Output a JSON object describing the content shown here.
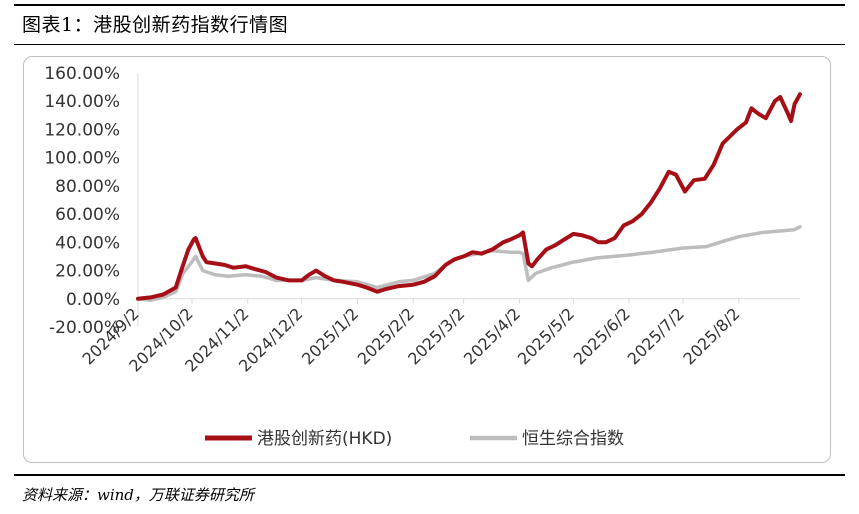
{
  "figure": {
    "title": "图表1：港股创新药指数行情图",
    "source": "资料来源：wind，万联证券研究所"
  },
  "chart_data": {
    "type": "line",
    "title": "",
    "xlabel": "",
    "ylabel": "",
    "ylim": [
      -20,
      160
    ],
    "y_tick_labels": [
      "160.00%",
      "140.00%",
      "120.00%",
      "100.00%",
      "80.00%",
      "60.00%",
      "40.00%",
      "20.00%",
      "0.00%",
      "-20.00%"
    ],
    "x_tick_labels": [
      "2024/9/2",
      "2024/10/2",
      "2024/11/2",
      "2024/12/2",
      "2025/1/2",
      "2025/2/2",
      "2025/3/2",
      "2025/4/2",
      "2025/5/2",
      "2025/6/2",
      "2025/7/2",
      "2025/8/2"
    ],
    "xlim": [
      "2024-09-02",
      "2025-09-05"
    ],
    "grid": false,
    "legend_position": "bottom",
    "series": [
      {
        "name": "港股创新药(HKD)",
        "color": "#a50f15",
        "points": [
          [
            "2024-09-02",
            0
          ],
          [
            "2024-09-09",
            1
          ],
          [
            "2024-09-16",
            3
          ],
          [
            "2024-09-23",
            8
          ],
          [
            "2024-09-26",
            20
          ],
          [
            "2024-09-30",
            35
          ],
          [
            "2024-10-03",
            42
          ],
          [
            "2024-10-04",
            43
          ],
          [
            "2024-10-08",
            30
          ],
          [
            "2024-10-10",
            26
          ],
          [
            "2024-10-15",
            25
          ],
          [
            "2024-10-20",
            24
          ],
          [
            "2024-10-25",
            22
          ],
          [
            "2024-11-01",
            23
          ],
          [
            "2024-11-06",
            21
          ],
          [
            "2024-11-12",
            19
          ],
          [
            "2024-11-18",
            15
          ],
          [
            "2024-11-25",
            13
          ],
          [
            "2024-12-02",
            13
          ],
          [
            "2024-12-06",
            17
          ],
          [
            "2024-12-10",
            20
          ],
          [
            "2024-12-15",
            16
          ],
          [
            "2024-12-20",
            13
          ],
          [
            "2024-12-25",
            12
          ],
          [
            "2025-01-02",
            10
          ],
          [
            "2025-01-07",
            8
          ],
          [
            "2025-01-13",
            5
          ],
          [
            "2025-01-18",
            7
          ],
          [
            "2025-01-25",
            9
          ],
          [
            "2025-02-02",
            10
          ],
          [
            "2025-02-08",
            12
          ],
          [
            "2025-02-14",
            16
          ],
          [
            "2025-02-20",
            24
          ],
          [
            "2025-02-25",
            28
          ],
          [
            "2025-03-02",
            30
          ],
          [
            "2025-03-07",
            33
          ],
          [
            "2025-03-12",
            32
          ],
          [
            "2025-03-18",
            35
          ],
          [
            "2025-03-24",
            40
          ],
          [
            "2025-03-28",
            42
          ],
          [
            "2025-04-02",
            45
          ],
          [
            "2025-04-04",
            47
          ],
          [
            "2025-04-07",
            25
          ],
          [
            "2025-04-09",
            23
          ],
          [
            "2025-04-12",
            28
          ],
          [
            "2025-04-17",
            35
          ],
          [
            "2025-04-22",
            38
          ],
          [
            "2025-04-27",
            42
          ],
          [
            "2025-05-02",
            46
          ],
          [
            "2025-05-07",
            45
          ],
          [
            "2025-05-12",
            43
          ],
          [
            "2025-05-16",
            40
          ],
          [
            "2025-05-20",
            40
          ],
          [
            "2025-05-25",
            43
          ],
          [
            "2025-05-30",
            52
          ],
          [
            "2025-06-04",
            55
          ],
          [
            "2025-06-09",
            60
          ],
          [
            "2025-06-14",
            68
          ],
          [
            "2025-06-19",
            78
          ],
          [
            "2025-06-24",
            90
          ],
          [
            "2025-06-28",
            88
          ],
          [
            "2025-07-03",
            76
          ],
          [
            "2025-07-08",
            84
          ],
          [
            "2025-07-14",
            85
          ],
          [
            "2025-07-19",
            95
          ],
          [
            "2025-07-24",
            110
          ],
          [
            "2025-07-28",
            115
          ],
          [
            "2025-08-01",
            120
          ],
          [
            "2025-08-06",
            125
          ],
          [
            "2025-08-09",
            135
          ],
          [
            "2025-08-13",
            131
          ],
          [
            "2025-08-17",
            128
          ],
          [
            "2025-08-22",
            140
          ],
          [
            "2025-08-25",
            143
          ],
          [
            "2025-08-29",
            132
          ],
          [
            "2025-08-31",
            126
          ],
          [
            "2025-09-02",
            138
          ],
          [
            "2025-09-05",
            145
          ]
        ]
      },
      {
        "name": "恒生综合指数",
        "color": "#bdbdbd",
        "points": [
          [
            "2024-09-02",
            0
          ],
          [
            "2024-09-09",
            -1
          ],
          [
            "2024-09-16",
            1
          ],
          [
            "2024-09-23",
            5
          ],
          [
            "2024-09-27",
            18
          ],
          [
            "2024-10-03",
            28
          ],
          [
            "2024-10-04",
            30
          ],
          [
            "2024-10-08",
            20
          ],
          [
            "2024-10-15",
            17
          ],
          [
            "2024-10-22",
            16
          ],
          [
            "2024-11-01",
            17
          ],
          [
            "2024-11-10",
            16
          ],
          [
            "2024-11-18",
            13
          ],
          [
            "2024-12-02",
            13
          ],
          [
            "2024-12-10",
            15
          ],
          [
            "2024-12-20",
            13
          ],
          [
            "2025-01-02",
            12
          ],
          [
            "2025-01-13",
            8
          ],
          [
            "2025-01-25",
            12
          ],
          [
            "2025-02-02",
            13
          ],
          [
            "2025-02-14",
            18
          ],
          [
            "2025-02-22",
            26
          ],
          [
            "2025-03-02",
            30
          ],
          [
            "2025-03-10",
            32
          ],
          [
            "2025-03-18",
            34
          ],
          [
            "2025-03-28",
            33
          ],
          [
            "2025-04-02",
            33
          ],
          [
            "2025-04-04",
            32
          ],
          [
            "2025-04-07",
            13
          ],
          [
            "2025-04-11",
            18
          ],
          [
            "2025-04-20",
            22
          ],
          [
            "2025-05-02",
            26
          ],
          [
            "2025-05-15",
            29
          ],
          [
            "2025-06-02",
            31
          ],
          [
            "2025-06-15",
            33
          ],
          [
            "2025-07-02",
            36
          ],
          [
            "2025-07-15",
            37
          ],
          [
            "2025-07-25",
            41
          ],
          [
            "2025-08-02",
            44
          ],
          [
            "2025-08-15",
            47
          ],
          [
            "2025-08-25",
            48
          ],
          [
            "2025-09-02",
            49
          ],
          [
            "2025-09-05",
            51
          ]
        ]
      }
    ]
  }
}
